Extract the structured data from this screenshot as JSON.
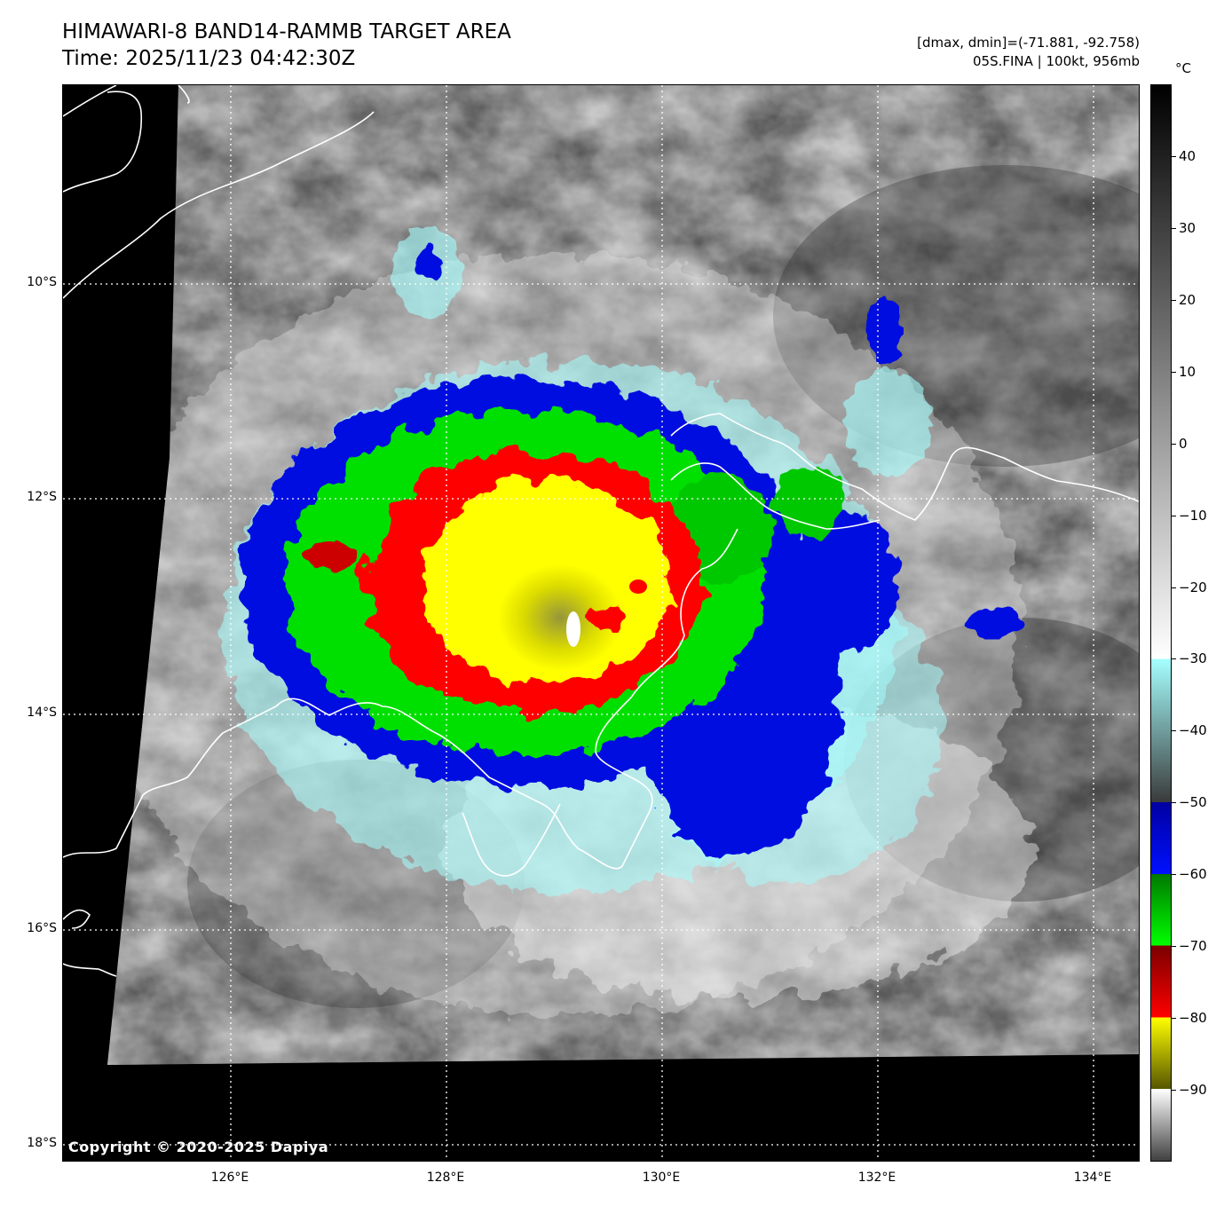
{
  "title": {
    "line1": "HIMAWARI-8 BAND14-RAMMB TARGET AREA",
    "line2": "Time: 2025/11/23 04:42:30Z"
  },
  "info": {
    "line1": "[dmax, dmin]=(-71.881, -92.758)",
    "line2": "05S.FINA | 100kt, 956mb"
  },
  "storm": {
    "id": "05S",
    "name": "FINA",
    "intensity_kt": 100,
    "pressure_mb": 956,
    "dmax_c": -71.881,
    "dmin_c": -92.758
  },
  "map": {
    "lon_range": [
      124.5,
      134.5
    ],
    "lat_range": [
      -18.2,
      -8.2
    ],
    "lat_ticks": [
      {
        "value": -10,
        "label": "10°S"
      },
      {
        "value": -12,
        "label": "12°S"
      },
      {
        "value": -14,
        "label": "14°S"
      },
      {
        "value": -16,
        "label": "16°S"
      },
      {
        "value": -18,
        "label": "18°S"
      }
    ],
    "lon_ticks": [
      {
        "value": 126,
        "label": "126°E"
      },
      {
        "value": 128,
        "label": "128°E"
      },
      {
        "value": 130,
        "label": "130°E"
      },
      {
        "value": 132,
        "label": "132°E"
      },
      {
        "value": 134,
        "label": "134°E"
      }
    ],
    "grid": "dotted-white",
    "coastline_color": "#ffffff"
  },
  "colorbar": {
    "unit": "°C",
    "range": [
      -100,
      50
    ],
    "ticks": [
      {
        "value": 40,
        "label": "40"
      },
      {
        "value": 30,
        "label": "30"
      },
      {
        "value": 20,
        "label": "20"
      },
      {
        "value": 10,
        "label": "10"
      },
      {
        "value": 0,
        "label": "0"
      },
      {
        "value": -10,
        "label": "−10"
      },
      {
        "value": -20,
        "label": "−20"
      },
      {
        "value": -30,
        "label": "−30"
      },
      {
        "value": -40,
        "label": "−40"
      },
      {
        "value": -50,
        "label": "−50"
      },
      {
        "value": -60,
        "label": "−60"
      },
      {
        "value": -70,
        "label": "−70"
      },
      {
        "value": -80,
        "label": "−80"
      },
      {
        "value": -90,
        "label": "−90"
      }
    ],
    "stops": [
      {
        "t": 50,
        "color": "#000000"
      },
      {
        "t": -30,
        "color": "#ffffff"
      },
      {
        "t": -30,
        "color": "#a6ffff"
      },
      {
        "t": -50,
        "color": "#3a3a3a"
      },
      {
        "t": -50,
        "color": "#0000a0"
      },
      {
        "t": -60,
        "color": "#0010ff"
      },
      {
        "t": -60,
        "color": "#007800"
      },
      {
        "t": -70,
        "color": "#00ff00"
      },
      {
        "t": -70,
        "color": "#7a0000"
      },
      {
        "t": -80,
        "color": "#ff0000"
      },
      {
        "t": -80,
        "color": "#ffff00"
      },
      {
        "t": -90,
        "color": "#555500"
      },
      {
        "t": -90,
        "color": "#ffffff"
      },
      {
        "t": -100,
        "color": "#404040"
      }
    ]
  },
  "copyright": "Copyright © 2020-2025 Dapiya"
}
